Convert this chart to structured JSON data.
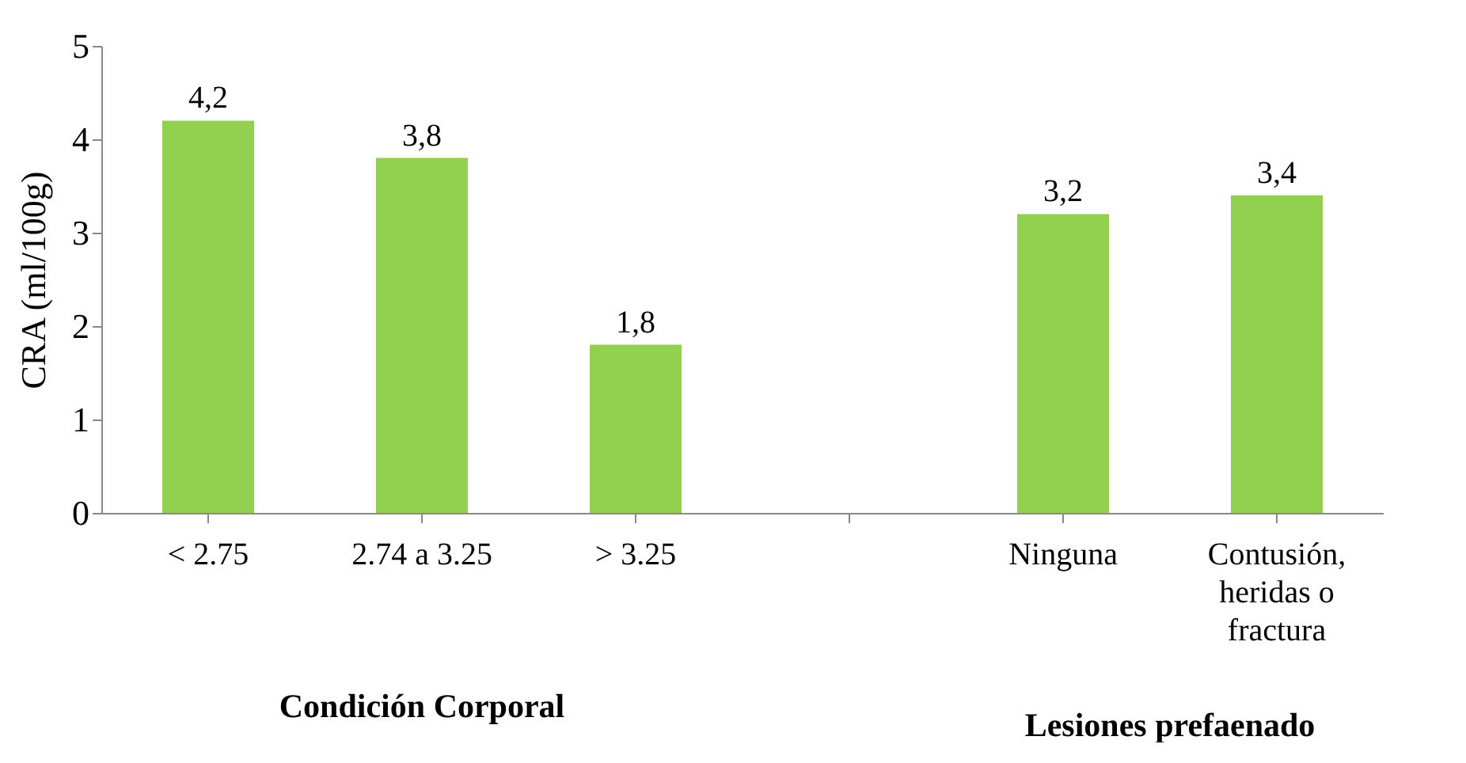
{
  "chart_data": {
    "type": "bar",
    "ylabel": "CRA (ml/100g)",
    "categories": [
      "< 2.75",
      "2.74 a 3.25",
      "> 3.25",
      null,
      "Ninguna",
      "Contusión, heridas o fractura"
    ],
    "values": [
      4.2,
      3.8,
      1.8,
      null,
      3.2,
      3.4
    ],
    "value_labels": [
      "4,2",
      "3,8",
      "1,8",
      null,
      "3,2",
      "3,4"
    ],
    "color": "#92d050",
    "ylim": [
      0,
      5
    ],
    "yticks": [
      0,
      1,
      2,
      3,
      4,
      5
    ],
    "grid": false,
    "annotations": [
      "Condición Corporal",
      "Lesiones prefaenado"
    ]
  }
}
